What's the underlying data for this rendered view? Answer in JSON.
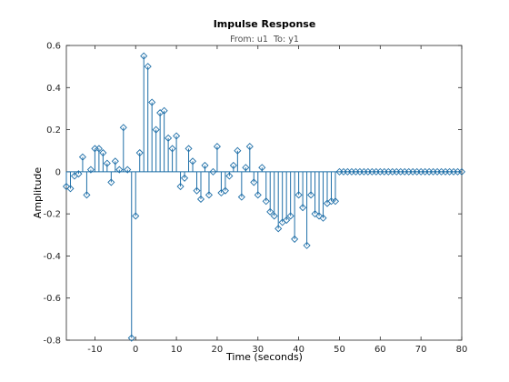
{
  "chart_data": {
    "type": "stem",
    "title": "Impulse Response",
    "subtitle": "From: u1  To: y1",
    "xlabel": "Time (seconds)",
    "ylabel": "Amplitude",
    "xlim": [
      -17,
      80
    ],
    "ylim": [
      -0.8,
      0.6
    ],
    "xticks": [
      -10,
      0,
      10,
      20,
      30,
      40,
      50,
      60,
      70,
      80
    ],
    "xtick_labels": [
      "-10",
      "0",
      "10",
      "20",
      "30",
      "40",
      "50",
      "60",
      "70",
      "80"
    ],
    "yticks": [
      -0.8,
      -0.6,
      -0.4,
      -0.2,
      0,
      0.2,
      0.4,
      0.6
    ],
    "ytick_labels": [
      "-0.8",
      "-0.6",
      "-0.4",
      "-0.2",
      "0",
      "0.2",
      "0.4",
      "0.6"
    ],
    "grid": false,
    "series": [
      {
        "color": "#1f6fa8",
        "marker": "diamond",
        "x": [
          -17,
          -16,
          -15,
          -14,
          -13,
          -12,
          -11,
          -10,
          -9,
          -8,
          -7,
          -6,
          -5,
          -4,
          -3,
          -2,
          -1,
          0,
          1,
          2,
          3,
          4,
          5,
          6,
          7,
          8,
          9,
          10,
          11,
          12,
          13,
          14,
          15,
          16,
          17,
          18,
          19,
          20,
          21,
          22,
          23,
          24,
          25,
          26,
          27,
          28,
          29,
          30,
          31,
          32,
          33,
          34,
          35,
          36,
          37,
          38,
          39,
          40,
          41,
          42,
          43,
          44,
          45,
          46,
          47,
          48,
          49,
          50,
          51,
          52,
          53,
          54,
          55,
          56,
          57,
          58,
          59,
          60,
          61,
          62,
          63,
          64,
          65,
          66,
          67,
          68,
          69,
          70,
          71,
          72,
          73,
          74,
          75,
          76,
          77,
          78,
          79,
          80
        ],
        "y": [
          -0.07,
          -0.08,
          -0.02,
          -0.01,
          0.07,
          -0.11,
          0.01,
          0.11,
          0.11,
          0.09,
          0.04,
          -0.05,
          0.05,
          0.01,
          0.21,
          0.01,
          -0.79,
          -0.21,
          0.09,
          0.55,
          0.5,
          0.33,
          0.2,
          0.28,
          0.29,
          0.16,
          0.11,
          0.17,
          -0.07,
          -0.03,
          0.11,
          0.05,
          -0.09,
          -0.13,
          0.03,
          -0.11,
          0.0,
          0.12,
          -0.1,
          -0.09,
          -0.02,
          0.03,
          0.1,
          -0.12,
          0.02,
          0.12,
          -0.05,
          -0.11,
          0.02,
          -0.14,
          -0.19,
          -0.21,
          -0.27,
          -0.24,
          -0.23,
          -0.21,
          -0.32,
          -0.11,
          -0.17,
          -0.35,
          -0.11,
          -0.2,
          -0.21,
          -0.22,
          -0.15,
          -0.14,
          -0.14,
          0.0,
          0.0,
          0.0,
          0.0,
          0.0,
          0.0,
          0.0,
          0.0,
          0.0,
          0.0,
          0.0,
          0.0,
          0.0,
          0.0,
          0.0,
          0.0,
          0.0,
          0.0,
          0.0,
          0.0,
          0.0,
          0.0,
          0.0,
          0.0,
          0.0,
          0.0,
          0.0,
          0.0,
          0.0,
          0.0,
          0.0
        ]
      }
    ]
  }
}
